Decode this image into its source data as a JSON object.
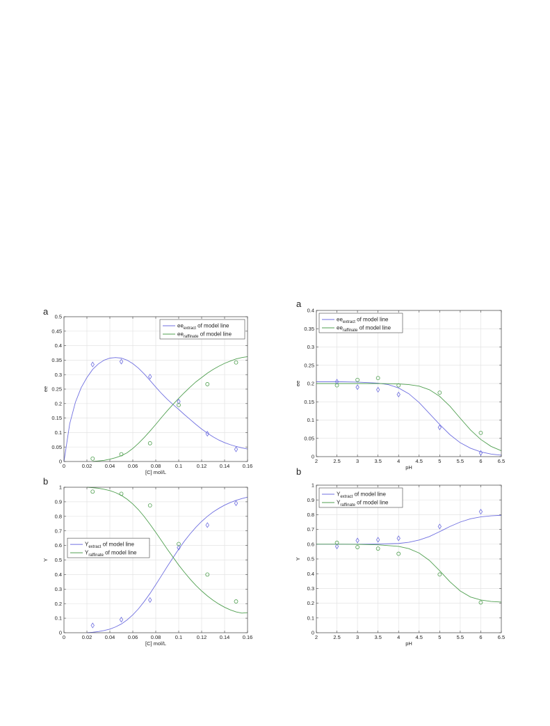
{
  "colors": {
    "extract": "#6f6fe0",
    "raffinate": "#4f9f4f",
    "grid": "#e3e3e3",
    "axis": "#444444"
  },
  "chart_data": [
    {
      "id": "tl",
      "type": "line",
      "panel_label": "a",
      "xlabel": "[C] mol/L",
      "ylabel": "ee",
      "xlim": [
        0,
        0.16
      ],
      "ylim": [
        0,
        0.5
      ],
      "xticks": [
        0,
        0.02,
        0.04,
        0.06,
        0.08,
        0.1,
        0.12,
        0.14,
        0.16
      ],
      "yticks": [
        0,
        0.05,
        0.1,
        0.15,
        0.2,
        0.25,
        0.3,
        0.35,
        0.4,
        0.45,
        0.5
      ],
      "xtick_labels": [
        "0",
        "0.02",
        "0.04",
        "0.06",
        "0.08",
        "0.1",
        "0.12",
        "0.14",
        "0.16"
      ],
      "ytick_labels": [
        "0",
        "0.05",
        "0.1",
        "0.15",
        "0.2",
        "0.25",
        "0.3",
        "0.35",
        "0.4",
        "0.45",
        "0.5"
      ],
      "grid": true,
      "legend_position": "top-right",
      "legend": [
        {
          "main": "ee",
          "sub": "extract",
          "rest": " of model line"
        },
        {
          "main": "ee",
          "sub": "raffinate",
          "rest": " of model line"
        }
      ],
      "series": [
        {
          "name": "ee extract of model line",
          "kind": "line",
          "color_key": "extract",
          "x": [
            0,
            0.005,
            0.01,
            0.015,
            0.02,
            0.025,
            0.03,
            0.035,
            0.04,
            0.045,
            0.05,
            0.055,
            0.06,
            0.065,
            0.07,
            0.075,
            0.08,
            0.085,
            0.09,
            0.095,
            0.1,
            0.105,
            0.11,
            0.115,
            0.12,
            0.125,
            0.13,
            0.135,
            0.14,
            0.145,
            0.15,
            0.155,
            0.16
          ],
          "y": [
            0,
            0.13,
            0.205,
            0.255,
            0.29,
            0.318,
            0.337,
            0.35,
            0.357,
            0.359,
            0.357,
            0.35,
            0.338,
            0.322,
            0.302,
            0.28,
            0.257,
            0.235,
            0.215,
            0.197,
            0.18,
            0.162,
            0.145,
            0.128,
            0.112,
            0.098,
            0.085,
            0.074,
            0.065,
            0.058,
            0.052,
            0.047,
            0.043
          ]
        },
        {
          "name": "ee raffinate of model line",
          "kind": "line",
          "color_key": "raffinate",
          "x": [
            0.025,
            0.03,
            0.035,
            0.04,
            0.045,
            0.05,
            0.055,
            0.06,
            0.065,
            0.07,
            0.075,
            0.08,
            0.085,
            0.09,
            0.095,
            0.1,
            0.105,
            0.11,
            0.115,
            0.12,
            0.125,
            0.13,
            0.135,
            0.14,
            0.145,
            0.15,
            0.155,
            0.16
          ],
          "y": [
            0.0,
            0.002,
            0.004,
            0.008,
            0.013,
            0.02,
            0.03,
            0.045,
            0.063,
            0.083,
            0.105,
            0.128,
            0.152,
            0.175,
            0.197,
            0.218,
            0.238,
            0.257,
            0.275,
            0.29,
            0.305,
            0.318,
            0.329,
            0.339,
            0.347,
            0.354,
            0.359,
            0.362
          ]
        },
        {
          "name": "",
          "kind": "diamond",
          "color_key": "extract",
          "x": [
            0.025,
            0.05,
            0.075,
            0.1,
            0.125,
            0.15
          ],
          "y": [
            0.335,
            0.345,
            0.293,
            0.207,
            0.096,
            0.042
          ]
        },
        {
          "name": "",
          "kind": "circle",
          "color_key": "raffinate",
          "x": [
            0.025,
            0.05,
            0.075,
            0.1,
            0.125,
            0.15
          ],
          "y": [
            0.01,
            0.025,
            0.063,
            0.195,
            0.267,
            0.342
          ]
        }
      ]
    },
    {
      "id": "bl",
      "type": "line",
      "panel_label": "b",
      "xlabel": "[C] mol/L",
      "ylabel": "Y",
      "xlim": [
        0,
        0.16
      ],
      "ylim": [
        0,
        1
      ],
      "xticks": [
        0,
        0.02,
        0.04,
        0.06,
        0.08,
        0.1,
        0.12,
        0.14,
        0.16
      ],
      "yticks": [
        0,
        0.1,
        0.2,
        0.3,
        0.4,
        0.5,
        0.6,
        0.7,
        0.8,
        0.9,
        1
      ],
      "xtick_labels": [
        "0",
        "0.02",
        "0.04",
        "0.06",
        "0.08",
        "0.1",
        "0.12",
        "0.14",
        "0.16"
      ],
      "ytick_labels": [
        "0",
        "0.1",
        "0.2",
        "0.3",
        "0.4",
        "0.5",
        "0.6",
        "0.7",
        "0.8",
        "0.9",
        "1"
      ],
      "grid": true,
      "legend_position": "middle-left",
      "legend": [
        {
          "main": "Y",
          "sub": "extract",
          "rest": " of model line"
        },
        {
          "main": "Y",
          "sub": "raffinate",
          "rest": " of model line"
        }
      ],
      "series": [
        {
          "name": "Y extract of model line",
          "kind": "line",
          "color_key": "extract",
          "x": [
            0.02,
            0.025,
            0.03,
            0.035,
            0.04,
            0.045,
            0.05,
            0.055,
            0.06,
            0.065,
            0.07,
            0.075,
            0.08,
            0.085,
            0.09,
            0.095,
            0.1,
            0.105,
            0.11,
            0.115,
            0.12,
            0.125,
            0.13,
            0.135,
            0.14,
            0.145,
            0.15,
            0.155,
            0.16
          ],
          "y": [
            0.0,
            0.003,
            0.008,
            0.015,
            0.025,
            0.04,
            0.06,
            0.088,
            0.123,
            0.165,
            0.215,
            0.27,
            0.33,
            0.392,
            0.455,
            0.515,
            0.575,
            0.63,
            0.68,
            0.725,
            0.765,
            0.8,
            0.83,
            0.855,
            0.877,
            0.895,
            0.91,
            0.922,
            0.932
          ]
        },
        {
          "name": "Y raffinate of model line",
          "kind": "line",
          "color_key": "raffinate",
          "x": [
            0.02,
            0.025,
            0.03,
            0.035,
            0.04,
            0.045,
            0.05,
            0.055,
            0.06,
            0.065,
            0.07,
            0.075,
            0.08,
            0.085,
            0.09,
            0.095,
            0.1,
            0.105,
            0.11,
            0.115,
            0.12,
            0.125,
            0.13,
            0.135,
            0.14,
            0.145,
            0.15,
            0.155,
            0.16
          ],
          "y": [
            1.0,
            0.997,
            0.993,
            0.986,
            0.977,
            0.963,
            0.944,
            0.918,
            0.885,
            0.845,
            0.798,
            0.745,
            0.69,
            0.633,
            0.575,
            0.52,
            0.465,
            0.415,
            0.368,
            0.325,
            0.287,
            0.253,
            0.223,
            0.197,
            0.175,
            0.157,
            0.143,
            0.135,
            0.138
          ]
        },
        {
          "name": "",
          "kind": "diamond",
          "color_key": "extract",
          "x": [
            0.025,
            0.05,
            0.075,
            0.1,
            0.125,
            0.15
          ],
          "y": [
            0.05,
            0.09,
            0.225,
            0.585,
            0.74,
            0.89
          ]
        },
        {
          "name": "",
          "kind": "circle",
          "color_key": "raffinate",
          "x": [
            0.025,
            0.05,
            0.075,
            0.1,
            0.125,
            0.15
          ],
          "y": [
            0.97,
            0.955,
            0.875,
            0.61,
            0.4,
            0.215
          ]
        }
      ]
    },
    {
      "id": "tr",
      "type": "line",
      "panel_label": "a",
      "xlabel": "pH",
      "ylabel": "ee",
      "xlim": [
        2,
        6.5
      ],
      "ylim": [
        0,
        0.4
      ],
      "xticks": [
        2,
        2.5,
        3,
        3.5,
        4,
        4.5,
        5,
        5.5,
        6,
        6.5
      ],
      "yticks": [
        0,
        0.05,
        0.1,
        0.15,
        0.2,
        0.25,
        0.3,
        0.35,
        0.4
      ],
      "xtick_labels": [
        "2",
        "2.5",
        "3",
        "3.5",
        "4",
        "4.5",
        "5",
        "5.5",
        "6",
        "6.5"
      ],
      "ytick_labels": [
        "0",
        "0.05",
        "0.1",
        "0.15",
        "0.2",
        "0.25",
        "0.3",
        "0.35",
        "0.4"
      ],
      "grid": true,
      "legend_position": "top-left",
      "legend": [
        {
          "main": "ee",
          "sub": "extract",
          "rest": " of model line"
        },
        {
          "main": "ee",
          "sub": "raffinate",
          "rest": " of model line"
        }
      ],
      "series": [
        {
          "name": "ee extract of model line",
          "kind": "line",
          "color_key": "extract",
          "x": [
            2,
            2.5,
            3,
            3.5,
            3.75,
            4,
            4.25,
            4.5,
            4.75,
            5,
            5.25,
            5.5,
            5.75,
            6,
            6.25,
            6.5
          ],
          "y": [
            0.205,
            0.205,
            0.204,
            0.201,
            0.197,
            0.188,
            0.172,
            0.148,
            0.118,
            0.088,
            0.06,
            0.038,
            0.023,
            0.013,
            0.007,
            0.004
          ]
        },
        {
          "name": "ee raffinate of model line",
          "kind": "line",
          "color_key": "raffinate",
          "x": [
            2,
            2.5,
            3,
            3.5,
            4,
            4.25,
            4.5,
            4.75,
            5,
            5.25,
            5.5,
            5.75,
            6,
            6.25,
            6.5
          ],
          "y": [
            0.2,
            0.2,
            0.2,
            0.2,
            0.199,
            0.197,
            0.193,
            0.183,
            0.165,
            0.138,
            0.105,
            0.073,
            0.047,
            0.028,
            0.016
          ]
        },
        {
          "name": "",
          "kind": "diamond",
          "color_key": "extract",
          "x": [
            2.5,
            3,
            3.5,
            4,
            5,
            6
          ],
          "y": [
            0.205,
            0.19,
            0.183,
            0.17,
            0.08,
            0.01
          ]
        },
        {
          "name": "",
          "kind": "circle",
          "color_key": "raffinate",
          "x": [
            2.5,
            3,
            3.5,
            4,
            5,
            6
          ],
          "y": [
            0.195,
            0.21,
            0.215,
            0.195,
            0.175,
            0.065
          ]
        }
      ]
    },
    {
      "id": "br",
      "type": "line",
      "panel_label": "b",
      "xlabel": "pH",
      "ylabel": "Y",
      "xlim": [
        2,
        6.5
      ],
      "ylim": [
        0,
        1
      ],
      "xticks": [
        2,
        2.5,
        3,
        3.5,
        4,
        4.5,
        5,
        5.5,
        6,
        6.5
      ],
      "yticks": [
        0,
        0.1,
        0.2,
        0.3,
        0.4,
        0.5,
        0.6,
        0.7,
        0.8,
        0.9,
        1
      ],
      "xtick_labels": [
        "2",
        "2.5",
        "3",
        "3.5",
        "4",
        "4.5",
        "5",
        "5.5",
        "6",
        "6.5"
      ],
      "ytick_labels": [
        "0",
        "0.1",
        "0.2",
        "0.3",
        "0.4",
        "0.5",
        "0.6",
        "0.7",
        "0.8",
        "0.9",
        "1"
      ],
      "grid": true,
      "legend_position": "top-left",
      "legend": [
        {
          "main": "Y",
          "sub": "extract",
          "rest": " of model line"
        },
        {
          "main": "Y",
          "sub": "raffinate",
          "rest": " of model line"
        }
      ],
      "series": [
        {
          "name": "Y extract of model line",
          "kind": "line",
          "color_key": "extract",
          "x": [
            2,
            2.5,
            3,
            3.5,
            4,
            4.25,
            4.5,
            4.75,
            5,
            5.25,
            5.5,
            5.75,
            6,
            6.25,
            6.5
          ],
          "y": [
            0.6,
            0.6,
            0.6,
            0.601,
            0.605,
            0.613,
            0.628,
            0.652,
            0.685,
            0.72,
            0.75,
            0.772,
            0.785,
            0.792,
            0.796
          ]
        },
        {
          "name": "Y raffinate of model line",
          "kind": "line",
          "color_key": "raffinate",
          "x": [
            2,
            2.5,
            3,
            3.5,
            4,
            4.25,
            4.5,
            4.75,
            5,
            5.25,
            5.5,
            5.75,
            6,
            6.25,
            6.5
          ],
          "y": [
            0.6,
            0.6,
            0.599,
            0.596,
            0.585,
            0.57,
            0.54,
            0.49,
            0.42,
            0.345,
            0.283,
            0.242,
            0.222,
            0.212,
            0.208
          ]
        },
        {
          "name": "",
          "kind": "diamond",
          "color_key": "extract",
          "x": [
            2.5,
            3,
            3.5,
            4,
            5,
            6
          ],
          "y": [
            0.585,
            0.625,
            0.63,
            0.64,
            0.72,
            0.82
          ]
        },
        {
          "name": "",
          "kind": "circle",
          "color_key": "raffinate",
          "x": [
            2.5,
            3,
            3.5,
            4,
            5,
            6
          ],
          "y": [
            0.61,
            0.58,
            0.57,
            0.535,
            0.395,
            0.205
          ]
        }
      ]
    }
  ]
}
